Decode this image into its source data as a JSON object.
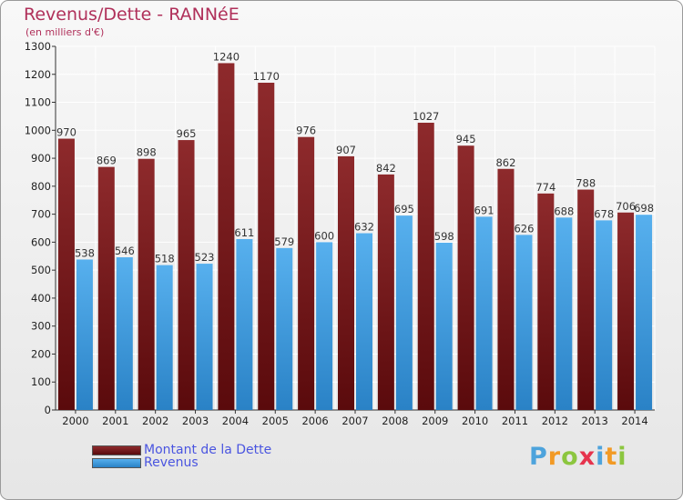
{
  "colors": {
    "dette": "#7a1c20",
    "revenus": "#3d9be0",
    "title": "#b0305a",
    "legend_text": "#4a55e0"
  },
  "chart_data": {
    "type": "bar",
    "title": "Revenus/Dette - RANNéE",
    "subtitle": "(en milliers d'€)",
    "categories": [
      "2000",
      "2001",
      "2002",
      "2003",
      "2004",
      "2005",
      "2006",
      "2007",
      "2008",
      "2009",
      "2010",
      "2011",
      "2012",
      "2013",
      "2014"
    ],
    "series": [
      {
        "name": "Montant de la Dette",
        "values": [
          970,
          869,
          898,
          965,
          1240,
          1170,
          976,
          907,
          842,
          1027,
          945,
          862,
          774,
          788,
          706
        ]
      },
      {
        "name": "Revenus",
        "values": [
          538,
          546,
          518,
          523,
          611,
          579,
          600,
          632,
          695,
          598,
          691,
          626,
          688,
          678,
          698
        ]
      }
    ],
    "ylim": [
      0,
      1300
    ],
    "yticks": [
      0,
      100,
      200,
      300,
      400,
      500,
      600,
      700,
      800,
      900,
      1000,
      1100,
      1200,
      1300
    ],
    "grid": true,
    "legend": "bottom-left"
  },
  "logo": {
    "letters": [
      "P",
      "r",
      "o",
      "x",
      "i",
      "t",
      "i"
    ],
    "colors": [
      "#4da3dc",
      "#f29a25",
      "#8cc63f",
      "#e6334d",
      "#4da3dc",
      "#f29a25",
      "#8cc63f"
    ]
  }
}
